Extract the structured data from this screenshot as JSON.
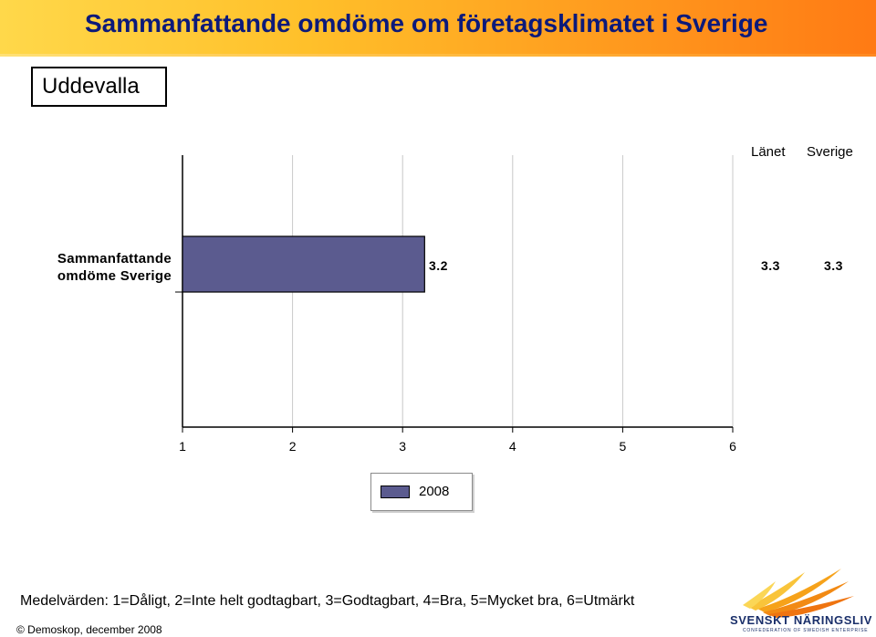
{
  "header": {
    "title": "Sammanfattande omdöme om företagsklimatet i Sverige",
    "region": "Uddevalla"
  },
  "columns": {
    "lanet_label": "Länet",
    "sverige_label": "Sverige"
  },
  "colors": {
    "bar": "#5b5b8f",
    "title_text": "#0c1a7a",
    "band_start": "#ffd84a",
    "band_end": "#ff7a14",
    "gridline": "#c8c8c8"
  },
  "chart_data": {
    "type": "bar",
    "orientation": "horizontal",
    "categories": [
      "Sammanfattande omdöme Sverige"
    ],
    "series": [
      {
        "name": "2008",
        "values": [
          3.2
        ]
      }
    ],
    "value_label": "3.2",
    "lanet_value": "3.3",
    "sverige_value": "3.3",
    "xlim": [
      1,
      6
    ],
    "xticks": [
      "1",
      "2",
      "3",
      "4",
      "5",
      "6"
    ],
    "grid": true,
    "legend_position": "bottom-center",
    "title": "",
    "xlabel": "",
    "ylabel": ""
  },
  "footer": {
    "note": "Medelvärden: 1=Dåligt, 2=Inte helt godtagbart, 3=Godtagbart, 4=Bra, 5=Mycket bra, 6=Utmärkt",
    "copyright": "© Demoskop, december 2008",
    "logo_name": "SVENSKT NÄRINGSLIV",
    "logo_sub": "CONFEDERATION OF SWEDISH ENTERPRISE",
    "logo_icon": "flame-rays-logo"
  }
}
